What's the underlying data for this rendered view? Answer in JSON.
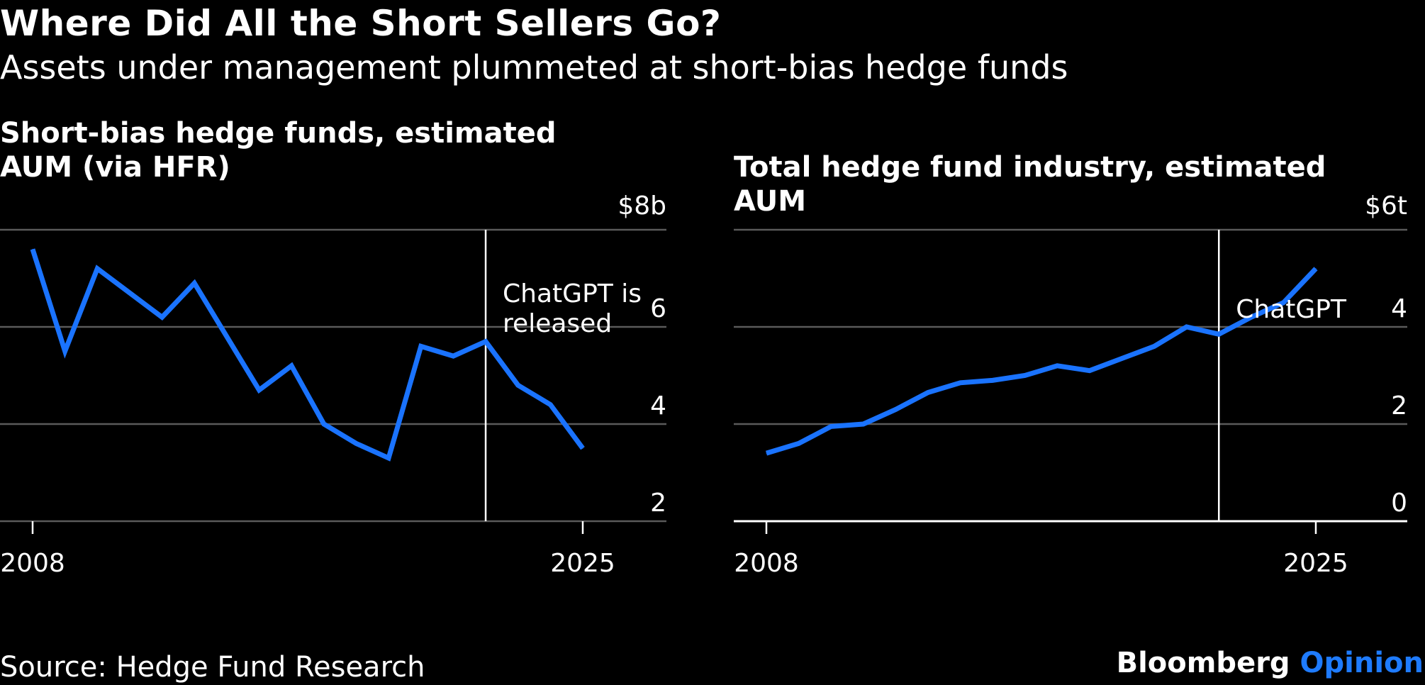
{
  "header": {
    "title": "Where Did All the Short Sellers Go?",
    "subtitle": "Assets under management plummeted at short-bias hedge funds"
  },
  "footer": {
    "source": "Source: Hedge Fund Research",
    "brand_main": "Bloomberg",
    "brand_accent": "Opinion"
  },
  "colors": {
    "line": "#1a73ff",
    "background": "#000000",
    "grid": "#555555",
    "text": "#ffffff"
  },
  "chart_data": [
    {
      "type": "line",
      "title": "Short-bias hedge funds, estimated AUM (via HFR)",
      "x": [
        2008,
        2009,
        2010,
        2011,
        2012,
        2013,
        2014,
        2015,
        2016,
        2017,
        2018,
        2019,
        2020,
        2021,
        2022,
        2023,
        2024,
        2025
      ],
      "series": [
        {
          "values": [
            7.6,
            5.5,
            7.2,
            6.7,
            6.2,
            6.9,
            5.8,
            4.7,
            5.2,
            4.0,
            3.6,
            3.3,
            5.6,
            5.4,
            5.7,
            4.8,
            4.4,
            3.5
          ]
        }
      ],
      "xticks": [
        "2008",
        "2025"
      ],
      "yticks": [
        "2",
        "4",
        "6",
        "$8b"
      ],
      "ylim": [
        2,
        8
      ],
      "annotation": {
        "x": 2022,
        "label_lines": [
          "ChatGPT is",
          "released"
        ]
      },
      "grid": true
    },
    {
      "type": "line",
      "title": "Total hedge fund industry, estimated AUM",
      "x": [
        2008,
        2009,
        2010,
        2011,
        2012,
        2013,
        2014,
        2015,
        2016,
        2017,
        2018,
        2019,
        2020,
        2021,
        2022,
        2023,
        2024,
        2025
      ],
      "series": [
        {
          "values": [
            1.4,
            1.6,
            1.95,
            2.0,
            2.3,
            2.65,
            2.85,
            2.9,
            3.0,
            3.2,
            3.1,
            3.35,
            3.6,
            4.0,
            3.85,
            4.2,
            4.5,
            5.2
          ]
        }
      ],
      "xticks": [
        "2008",
        "2025"
      ],
      "yticks": [
        "0",
        "2",
        "4",
        "$6t"
      ],
      "ylim": [
        0,
        6
      ],
      "annotation": {
        "x": 2022,
        "label_lines": [
          "ChatGPT"
        ]
      },
      "grid": true
    }
  ]
}
